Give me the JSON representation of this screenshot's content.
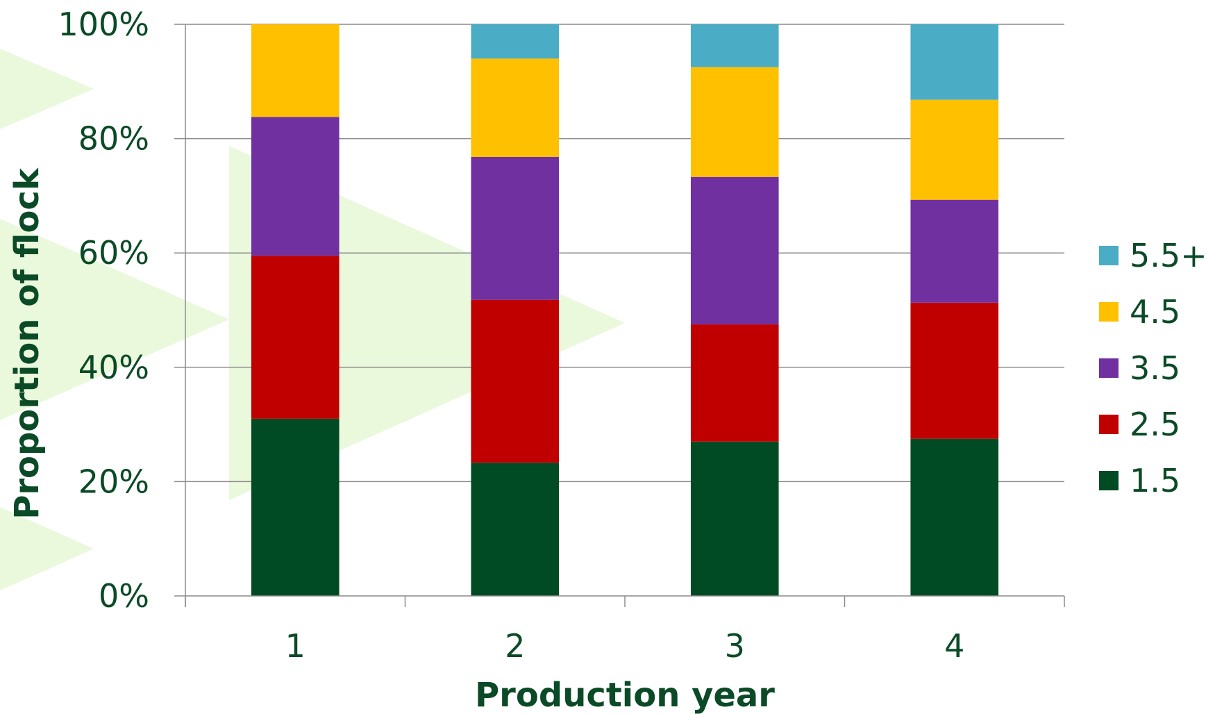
{
  "chart_data": {
    "type": "bar",
    "stacked": true,
    "percent_stacked": true,
    "categories": [
      "1",
      "2",
      "3",
      "4"
    ],
    "series": [
      {
        "name": "1.5",
        "color": "#004b23",
        "values": [
          31,
          23.3,
          27,
          27.5
        ]
      },
      {
        "name": "2.5",
        "color": "#c00000",
        "values": [
          28.5,
          28.5,
          20.5,
          23.8
        ]
      },
      {
        "name": "3.5",
        "color": "#7030a0",
        "values": [
          24.3,
          25,
          25.8,
          18
        ]
      },
      {
        "name": "4.5",
        "color": "#ffc000",
        "values": [
          16.2,
          17.2,
          19.2,
          17.5
        ]
      },
      {
        "name": "5.5+",
        "color": "#4bacc6",
        "values": [
          0,
          6,
          7.5,
          13.2
        ]
      }
    ],
    "xlabel": "Production year",
    "ylabel": "Proportion of flock",
    "yticks": [
      "0%",
      "20%",
      "40%",
      "60%",
      "80%",
      "100%"
    ],
    "ylim": [
      0,
      100
    ],
    "grid": true,
    "legend_position": "right",
    "legend_order": [
      "5.5+",
      "4.5",
      "3.5",
      "2.5",
      "1.5"
    ]
  }
}
